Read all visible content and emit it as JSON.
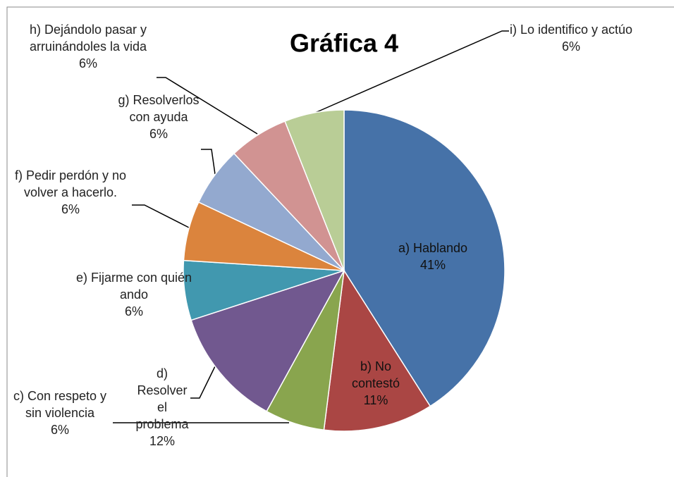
{
  "chart_data": {
    "type": "pie",
    "title": "Gráfica 4",
    "categories": [
      "a) Hablando",
      "b) No contestó",
      "c) Con respeto y sin violencia",
      "d) Resolver el problema",
      "e) Fijarme con quién ando",
      "f) Pedir perdón y no volver a hacerlo.",
      "g) Resolverlos con ayuda",
      "h) Dejándolo pasar y arruinándoles la vida",
      "i) Lo identifico y actúo"
    ],
    "values": [
      41,
      11,
      6,
      12,
      6,
      6,
      6,
      6,
      6
    ],
    "value_labels": [
      "41%",
      "11%",
      "6%",
      "12%",
      "6%",
      "6%",
      "6%",
      "6%",
      "6%"
    ],
    "colors": [
      "#4672a8",
      "#aa4644",
      "#89a54e",
      "#71588f",
      "#4198af",
      "#db843d",
      "#93a9cf",
      "#d19392",
      "#b9cd96"
    ]
  }
}
